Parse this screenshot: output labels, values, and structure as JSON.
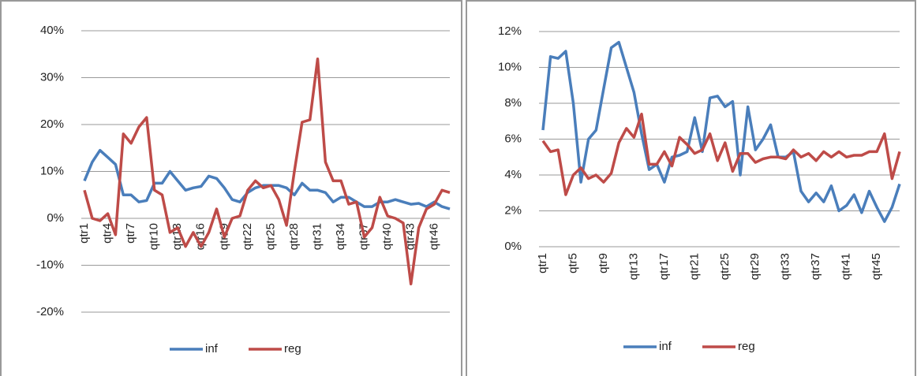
{
  "chart_data": [
    {
      "type": "line",
      "legend": "bottom",
      "grid": true,
      "categories": [
        "qtr1",
        null,
        null,
        "qtr4",
        null,
        null,
        "qtr7",
        null,
        null,
        "qtr10",
        null,
        null,
        "qtr13",
        null,
        null,
        "qtr16",
        null,
        null,
        "qtr19",
        null,
        null,
        "qtr22",
        null,
        null,
        "qtr25",
        null,
        null,
        "qtr28",
        null,
        null,
        "qtr31",
        null,
        null,
        "qtr34",
        null,
        null,
        "qtr37",
        null,
        null,
        "qtr40",
        null,
        null,
        "qtr43",
        null,
        null,
        "qtr46",
        null,
        null
      ],
      "ylim": [
        -20,
        40
      ],
      "yticks": [
        {
          "value": -20,
          "label": "-20%"
        },
        {
          "value": -10,
          "label": "-10%"
        },
        {
          "value": 0,
          "label": "0%"
        },
        {
          "value": 10,
          "label": "10%"
        },
        {
          "value": 20,
          "label": "20%"
        },
        {
          "value": 30,
          "label": "30%"
        },
        {
          "value": 40,
          "label": "40%"
        }
      ],
      "series": [
        {
          "name": "inf",
          "color": "#4a7ebb",
          "values": [
            8,
            12,
            14.5,
            13,
            11.5,
            5,
            5,
            3.5,
            3.8,
            7.5,
            7.5,
            10,
            8,
            6,
            6.5,
            6.8,
            9,
            8.5,
            6.5,
            4,
            3.5,
            5.5,
            6.5,
            7,
            7,
            7,
            6.5,
            5,
            7.5,
            6,
            6,
            5.5,
            3.5,
            4.5,
            4.5,
            3.5,
            2.5,
            2.5,
            3.5,
            3.5,
            4,
            3.5,
            3,
            3.2,
            2.5,
            3.5,
            2.5,
            2
          ]
        },
        {
          "name": "reg",
          "color": "#be4b48",
          "values": [
            6,
            0,
            -0.5,
            1,
            -3.5,
            18,
            16,
            19.5,
            21.5,
            6,
            5,
            -3,
            -2,
            -6,
            -3,
            -6,
            -3,
            2,
            -4,
            0,
            0.5,
            6,
            8,
            6.5,
            7,
            4,
            -1.5,
            10,
            20.5,
            21,
            34,
            12,
            8,
            8,
            3,
            3.5,
            -4,
            -2,
            4.5,
            0.5,
            0,
            -1,
            -14,
            -2,
            2,
            3,
            6,
            5.5
          ]
        }
      ]
    },
    {
      "type": "line",
      "legend": "bottom",
      "grid": true,
      "categories": [
        "qtr1",
        null,
        null,
        null,
        "qtr5",
        null,
        null,
        null,
        "qtr9",
        null,
        null,
        null,
        "qtr13",
        null,
        null,
        null,
        "qtr17",
        null,
        null,
        null,
        "qtr21",
        null,
        null,
        null,
        "qtr25",
        null,
        null,
        null,
        "qtr29",
        null,
        null,
        null,
        "qtr33",
        null,
        null,
        null,
        "qtr37",
        null,
        null,
        null,
        "qtr41",
        null,
        null,
        null,
        "qtr45",
        null,
        null,
        null
      ],
      "ylim": [
        0,
        12
      ],
      "yticks": [
        {
          "value": 0,
          "label": "0%"
        },
        {
          "value": 2,
          "label": "2%"
        },
        {
          "value": 4,
          "label": "4%"
        },
        {
          "value": 6,
          "label": "6%"
        },
        {
          "value": 8,
          "label": "8%"
        },
        {
          "value": 10,
          "label": "10%"
        },
        {
          "value": 12,
          "label": "12%"
        }
      ],
      "series": [
        {
          "name": "inf",
          "color": "#4a7ebb",
          "values": [
            6.5,
            10.6,
            10.5,
            10.9,
            8,
            3.6,
            6,
            6.5,
            8.8,
            11.1,
            11.4,
            10,
            8.6,
            6.3,
            4.3,
            4.6,
            3.6,
            5,
            5.1,
            5.3,
            7.2,
            5.3,
            8.3,
            8.4,
            7.8,
            8.1,
            4,
            7.8,
            5.4,
            6,
            6.8,
            5,
            5,
            5.3,
            3.1,
            2.5,
            3,
            2.5,
            3.4,
            2,
            2.3,
            2.9,
            1.9,
            3.1,
            2.2,
            1.4,
            2.2,
            3.5
          ]
        },
        {
          "name": "reg",
          "color": "#be4b48",
          "values": [
            5.9,
            5.3,
            5.4,
            2.9,
            4,
            4.4,
            3.8,
            4,
            3.6,
            4.1,
            5.8,
            6.6,
            6.1,
            7.4,
            4.6,
            4.6,
            5.3,
            4.5,
            6.1,
            5.7,
            5.2,
            5.4,
            6.3,
            4.8,
            5.8,
            4.2,
            5.2,
            5.2,
            4.7,
            4.9,
            5,
            5,
            4.9,
            5.4,
            5,
            5.2,
            4.8,
            5.3,
            5,
            5.3,
            5,
            5.1,
            5.1,
            5.3,
            5.3,
            6.3,
            3.8,
            5.3
          ]
        }
      ]
    }
  ]
}
